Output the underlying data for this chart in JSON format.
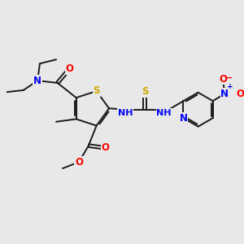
{
  "background_color": "#e8e8e8",
  "figsize": [
    3.0,
    3.0
  ],
  "dpi": 100,
  "colors": {
    "C": "#1a1a1a",
    "N": "#0000ff",
    "O": "#ff0000",
    "S": "#ccaa00",
    "bond": "#1a1a1a"
  },
  "font_size": 8.5,
  "bond_lw": 1.4,
  "xlim": [
    0,
    10
  ],
  "ylim": [
    0,
    10
  ]
}
